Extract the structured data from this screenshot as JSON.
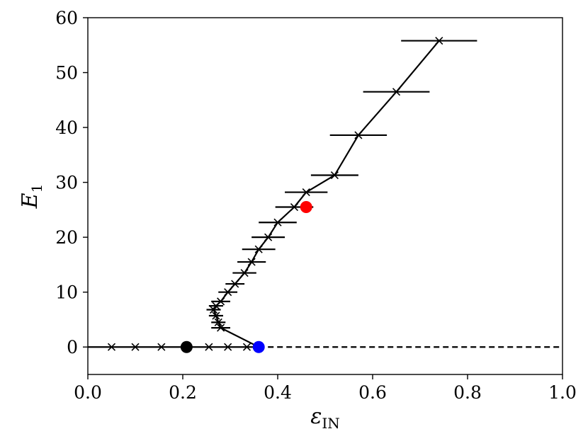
{
  "chart_data": {
    "type": "line",
    "title": "",
    "xlabel": {
      "symbol": "ε",
      "subscript": "IN"
    },
    "ylabel": {
      "symbol": "E",
      "subscript": "1"
    },
    "xlim": [
      0.0,
      1.0
    ],
    "ylim": [
      -5,
      60
    ],
    "xticks": [
      "0.0",
      "0.2",
      "0.4",
      "0.6",
      "0.8",
      "1.0"
    ],
    "yticks": [
      "0",
      "10",
      "20",
      "30",
      "40",
      "50",
      "60"
    ],
    "grid": false,
    "baseline": {
      "y": 0,
      "x_from": 0.36,
      "x_to": 1.0,
      "style": "dashed"
    },
    "trivial_branch": {
      "y": 0,
      "x_from": 0.0,
      "x_to": 0.36,
      "markers_x": [
        0.05,
        0.1,
        0.155,
        0.255,
        0.295,
        0.335
      ]
    },
    "branch": {
      "points": [
        {
          "x": 0.36,
          "y": 0
        },
        {
          "x": 0.28,
          "y": 3.5,
          "err": 0.02
        },
        {
          "x": 0.275,
          "y": 4.5,
          "err": 0.015
        },
        {
          "x": 0.27,
          "y": 5.7,
          "err": 0.015
        },
        {
          "x": 0.265,
          "y": 6.8,
          "err": 0.015
        },
        {
          "x": 0.27,
          "y": 7.5,
          "err": 0.015
        },
        {
          "x": 0.28,
          "y": 8.3,
          "err": 0.02
        },
        {
          "x": 0.295,
          "y": 10.0,
          "err": 0.02
        },
        {
          "x": 0.31,
          "y": 11.5,
          "err": 0.02
        },
        {
          "x": 0.33,
          "y": 13.5,
          "err": 0.025
        },
        {
          "x": 0.345,
          "y": 15.5,
          "err": 0.03
        },
        {
          "x": 0.36,
          "y": 17.8,
          "err": 0.035
        },
        {
          "x": 0.38,
          "y": 20.0,
          "err": 0.035
        },
        {
          "x": 0.4,
          "y": 22.7,
          "err": 0.04
        },
        {
          "x": 0.435,
          "y": 25.5,
          "err": 0.04
        },
        {
          "x": 0.46,
          "y": 28.2,
          "err": 0.045
        },
        {
          "x": 0.52,
          "y": 31.3,
          "err": 0.05
        },
        {
          "x": 0.57,
          "y": 38.6,
          "err": 0.06
        },
        {
          "x": 0.65,
          "y": 46.5,
          "err": 0.07
        },
        {
          "x": 0.74,
          "y": 55.8,
          "err": 0.08
        }
      ]
    },
    "highlight_points": [
      {
        "name": "black",
        "x": 0.208,
        "y": 0,
        "color": "#000000"
      },
      {
        "name": "blue",
        "x": 0.36,
        "y": 0,
        "color": "#0000ff"
      },
      {
        "name": "red",
        "x": 0.46,
        "y": 25.5,
        "color": "#ff0000"
      }
    ],
    "colors": {
      "line": "#000000"
    }
  }
}
